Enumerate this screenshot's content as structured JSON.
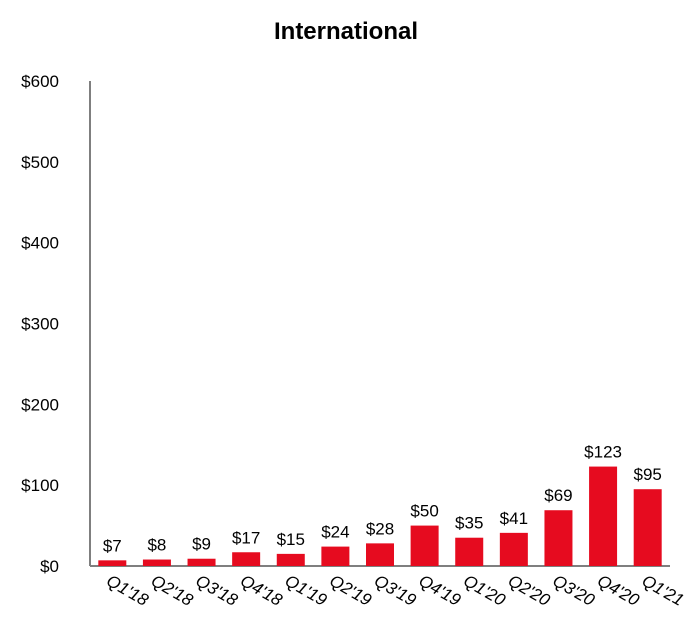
{
  "chart_data": {
    "type": "bar",
    "title": "International",
    "xlabel": "",
    "ylabel": "",
    "categories": [
      "Q1'18",
      "Q2'18",
      "Q3'18",
      "Q4'18",
      "Q1'19",
      "Q2'19",
      "Q3'19",
      "Q4'19",
      "Q1'20",
      "Q2'20",
      "Q3'20",
      "Q4'20",
      "Q1'21"
    ],
    "values": [
      7,
      8,
      9,
      17,
      15,
      24,
      28,
      50,
      35,
      41,
      69,
      123,
      95
    ],
    "data_labels": [
      "$7",
      "$8",
      "$9",
      "$17",
      "$15",
      "$24",
      "$28",
      "$50",
      "$35",
      "$41",
      "$69",
      "$123",
      "$95"
    ],
    "ylim": [
      0,
      600
    ],
    "y_ticks": [
      0,
      100,
      200,
      300,
      400,
      500,
      600
    ],
    "y_tick_labels": [
      "$0",
      "$100",
      "$200",
      "$300",
      "$400",
      "$500",
      "$600"
    ],
    "grid": false,
    "legend": "none",
    "bar_color": "#e60b1f",
    "axis_color": "#7f7f7f"
  }
}
